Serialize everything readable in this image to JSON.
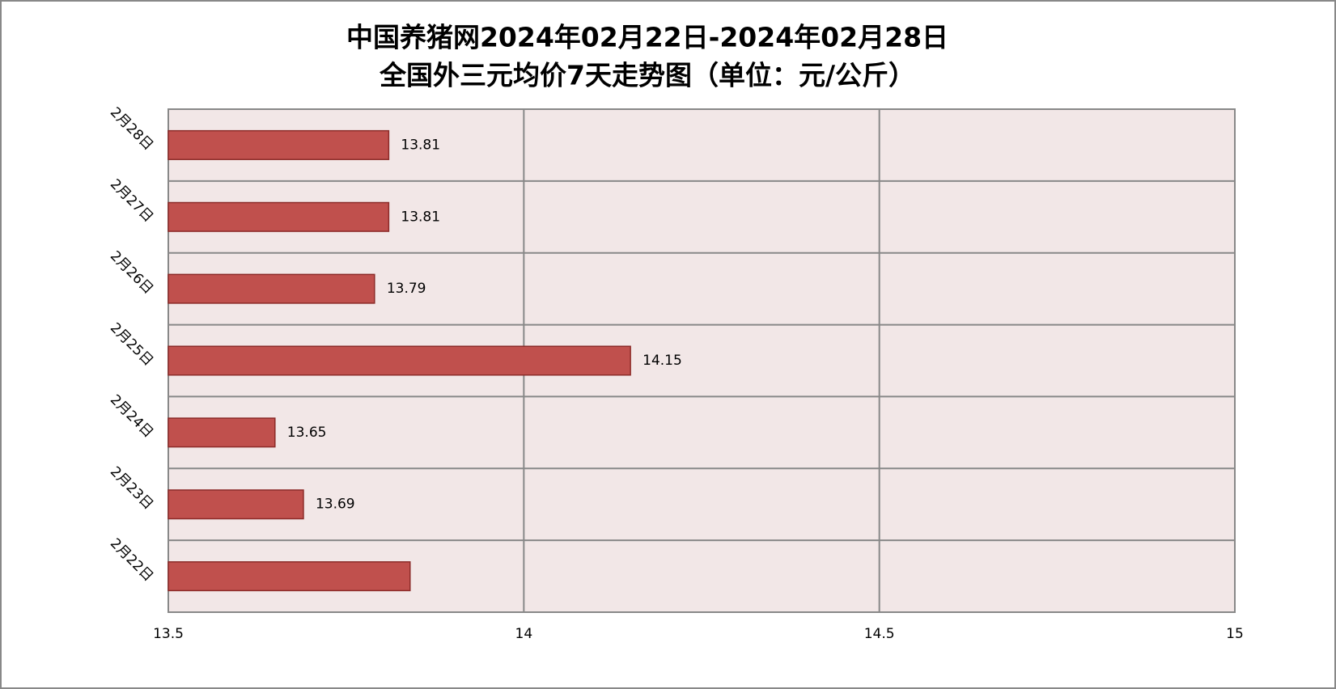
{
  "chart_data": {
    "type": "bar",
    "orientation": "horizontal",
    "title": [
      "中国养猪网2024年02月22日-2024年02月28日",
      "全国外三元均价7天走势图（单位：元/公斤）"
    ],
    "categories": [
      "2月22日",
      "2月23日",
      "2月24日",
      "2月25日",
      "2月26日",
      "2月27日",
      "2月28日"
    ],
    "values": [
      13.84,
      13.69,
      13.65,
      14.15,
      13.79,
      13.81,
      13.81
    ],
    "value_labels": [
      null,
      "13.69",
      "13.65",
      "14.15",
      "13.79",
      "13.81",
      "13.81"
    ],
    "color": "#c0504d",
    "edge_color": "#8c2b29",
    "background": "#f2e7e7",
    "xlim": [
      13.5,
      15
    ],
    "xticks": [
      13.5,
      14,
      14.5,
      15
    ],
    "grid": true
  }
}
